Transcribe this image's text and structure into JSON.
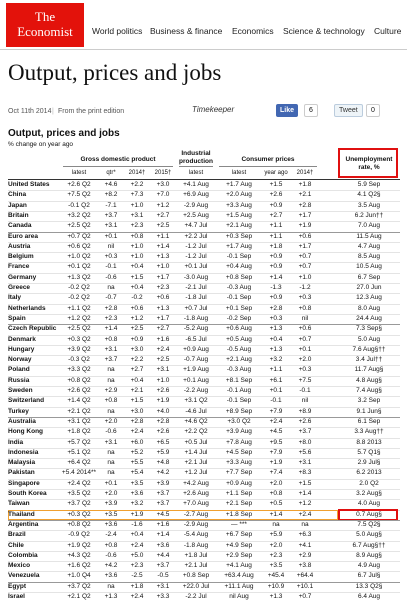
{
  "header": {
    "logo": [
      "The",
      "Economist"
    ],
    "nav": [
      "World politics",
      "Business & finance",
      "Economics",
      "Science & technology",
      "Culture"
    ]
  },
  "page_title": "Output, prices and jobs",
  "meta": {
    "date": "Oct 11th 2014",
    "edition": "From the print edition",
    "timekeeper": "Timekeeper",
    "like": "Like",
    "like_count": "6",
    "tweet": "Tweet",
    "tweet_count": "0"
  },
  "table": {
    "title": "Output, prices and jobs",
    "subtitle": "% change on year ago",
    "group_headers": [
      "Gross domestic product",
      "Industrial production",
      "Consumer prices",
      "Unemployment rate, %"
    ],
    "sub_headers": [
      "latest",
      "qtr*",
      "2014†",
      "2015†",
      "latest",
      "latest",
      "year ago",
      "2014†"
    ],
    "rows": [
      [
        "United States",
        "+2.6 Q2",
        "+4.6",
        "+2.2",
        "+3.0",
        "+4.1 Aug",
        "+1.7 Aug",
        "+1.5",
        "+1.8",
        "5.9 Sep"
      ],
      [
        "China",
        "+7.5 Q2",
        "+8.2",
        "+7.3",
        "+7.0",
        "+6.9 Aug",
        "+2.0 Aug",
        "+2.6",
        "+2.1",
        "4.1 Q2§"
      ],
      [
        "Japan",
        "-0.1 Q2",
        "-7.1",
        "+1.0",
        "+1.2",
        "-2.9 Aug",
        "+3.3 Aug",
        "+0.9",
        "+2.8",
        "3.5 Aug"
      ],
      [
        "Britain",
        "+3.2 Q2",
        "+3.7",
        "+3.1",
        "+2.7",
        "+2.5 Aug",
        "+1.5 Aug",
        "+2.7",
        "+1.7",
        "6.2 Jun††"
      ],
      [
        "Canada",
        "+2.5 Q2",
        "+3.1",
        "+2.3",
        "+2.5",
        "+4.7 Jul",
        "+2.1 Aug",
        "+1.1",
        "+1.9",
        "7.0 Aug"
      ],
      [
        "Euro area",
        "+0.7 Q2",
        "+0.1",
        "+0.8",
        "+1.1",
        "+2.2 Jul",
        "+0.3 Sep",
        "+1.1",
        "+0.6",
        "11.5 Aug"
      ],
      [
        "Austria",
        "+0.6 Q2",
        "nil",
        "+1.0",
        "+1.4",
        "-1.2 Jul",
        "+1.7 Aug",
        "+1.8",
        "+1.7",
        "4.7 Aug"
      ],
      [
        "Belgium",
        "+1.0 Q2",
        "+0.3",
        "+1.0",
        "+1.3",
        "-1.2 Jul",
        "-0.1 Sep",
        "+0.9",
        "+0.7",
        "8.5 Aug"
      ],
      [
        "France",
        "+0.1 Q2",
        "-0.1",
        "+0.4",
        "+1.0",
        "+0.1 Jul",
        "+0.4 Aug",
        "+0.9",
        "+0.7",
        "10.5 Aug"
      ],
      [
        "Germany",
        "+1.3 Q2",
        "-0.6",
        "+1.5",
        "+1.7",
        "-3.0 Aug",
        "+0.8 Sep",
        "+1.4",
        "+1.0",
        "6.7 Sep"
      ],
      [
        "Greece",
        "-0.2 Q2",
        "na",
        "+0.4",
        "+2.3",
        "-2.1 Jul",
        "-0.3 Aug",
        "-1.3",
        "-1.2",
        "27.0 Jun"
      ],
      [
        "Italy",
        "-0.2 Q2",
        "-0.7",
        "-0.2",
        "+0.6",
        "-1.8 Jul",
        "-0.1 Sep",
        "+0.9",
        "+0.3",
        "12.3 Aug"
      ],
      [
        "Netherlands",
        "+1.1 Q2",
        "+2.8",
        "+0.6",
        "+1.3",
        "+0.7 Jul",
        "+0.1 Sep",
        "+2.8",
        "+0.8",
        "8.0 Aug"
      ],
      [
        "Spain",
        "+1.2 Q2",
        "+2.3",
        "+1.2",
        "+1.7",
        "-1.8 Aug",
        "-0.2 Sep",
        "+0.3",
        "nil",
        "24.4 Aug"
      ],
      [
        "Czech Republic",
        "+2.5 Q2",
        "+1.4",
        "+2.5",
        "+2.7",
        "-5.2 Aug",
        "+0.6 Aug",
        "+1.3",
        "+0.6",
        "7.3 Sep§"
      ],
      [
        "Denmark",
        "+0.3 Q2",
        "+0.8",
        "+0.9",
        "+1.6",
        "-6.5 Jul",
        "+0.5 Aug",
        "+0.4",
        "+0.7",
        "5.0 Aug"
      ],
      [
        "Hungary",
        "+3.9 Q2",
        "+3.1",
        "+3.0",
        "+2.4",
        "+0.9 Aug",
        "-0.5 Aug",
        "+1.3",
        "+0.1",
        "7.6 Aug§††"
      ],
      [
        "Norway",
        "-0.3 Q2",
        "+3.7",
        "+2.2",
        "+2.5",
        "-0.7 Aug",
        "+2.1 Aug",
        "+3.2",
        "+2.0",
        "3.4 Jul††"
      ],
      [
        "Poland",
        "+3.3 Q2",
        "na",
        "+2.7",
        "+3.1",
        "+1.9 Aug",
        "-0.3 Aug",
        "+1.1",
        "+0.3",
        "11.7 Aug§"
      ],
      [
        "Russia",
        "+0.8 Q2",
        "na",
        "+0.4",
        "+1.0",
        "+0.1 Aug",
        "+8.1 Sep",
        "+6.1",
        "+7.5",
        "4.8 Aug§"
      ],
      [
        "Sweden",
        "+2.6 Q2",
        "+2.9",
        "+2.1",
        "+2.6",
        "-2.2 Aug",
        "-0.1 Aug",
        "+0.1",
        "-0.1",
        "7.4 Aug§"
      ],
      [
        "Switzerland",
        "+1.4 Q2",
        "+0.8",
        "+1.5",
        "+1.9",
        "+3.1 Q2",
        "-0.1 Sep",
        "-0.1",
        "nil",
        "3.2 Sep"
      ],
      [
        "Turkey",
        "+2.1 Q2",
        "na",
        "+3.0",
        "+4.0",
        "-4.6 Jul",
        "+8.9 Sep",
        "+7.9",
        "+8.9",
        "9.1 Jun§"
      ],
      [
        "Australia",
        "+3.1 Q2",
        "+2.0",
        "+2.8",
        "+2.8",
        "+4.6 Q2",
        "+3.0 Q2",
        "+2.4",
        "+2.6",
        "6.1 Sep"
      ],
      [
        "Hong Kong",
        "+1.8 Q2",
        "-0.6",
        "+2.4",
        "+2.6",
        "+2.2 Q2",
        "+3.9 Aug",
        "+4.5",
        "+3.7",
        "3.3 Aug††"
      ],
      [
        "India",
        "+5.7 Q2",
        "+3.1",
        "+6.0",
        "+6.5",
        "+0.5 Jul",
        "+7.8 Aug",
        "+9.5",
        "+8.0",
        "8.8 2013"
      ],
      [
        "Indonesia",
        "+5.1 Q2",
        "na",
        "+5.2",
        "+5.9",
        "+1.4 Jul",
        "+4.5 Sep",
        "+7.9",
        "+5.6",
        "5.7 Q1§"
      ],
      [
        "Malaysia",
        "+6.4 Q2",
        "na",
        "+5.5",
        "+4.8",
        "+2.1 Jul",
        "+3.3 Aug",
        "+1.9",
        "+3.1",
        "2.9 Jul§"
      ],
      [
        "Pakistan",
        "+5.4 2014**",
        "na",
        "+5.4",
        "+4.2",
        "+1.2 Jul",
        "+7.7 Sep",
        "+7.4",
        "+8.3",
        "6.2 2013"
      ],
      [
        "Singapore",
        "+2.4 Q2",
        "+0.1",
        "+3.5",
        "+3.9",
        "+4.2 Aug",
        "+0.9 Aug",
        "+2.0",
        "+1.5",
        "2.0 Q2"
      ],
      [
        "South Korea",
        "+3.5 Q2",
        "+2.0",
        "+3.6",
        "+3.7",
        "+2.6 Aug",
        "+1.1 Sep",
        "+0.8",
        "+1.4",
        "3.2 Aug§"
      ],
      [
        "Taiwan",
        "+3.7 Q2",
        "+3.9",
        "+3.2",
        "+3.7",
        "+7.0 Aug",
        "+2.1 Sep",
        "+0.5",
        "+1.2",
        "4.0 Aug"
      ],
      [
        "Thailand",
        "+0.3 Q2",
        "+3.5",
        "+1.9",
        "+4.5",
        "-2.7 Aug",
        "+1.8 Sep",
        "+1.4",
        "+2.4",
        "0.7 Aug§"
      ],
      [
        "Argentina",
        "+0.8 Q2",
        "+3.6",
        "-1.6",
        "+1.6",
        "-2.9 Aug",
        "— ***",
        "na",
        "na",
        "7.5 Q2§"
      ],
      [
        "Brazil",
        "-0.9 Q2",
        "-2.4",
        "+0.4",
        "+1.4",
        "-5.4 Aug",
        "+6.7 Sep",
        "+5.9",
        "+6.3",
        "5.0 Aug§"
      ],
      [
        "Chile",
        "+1.9 Q2",
        "+0.8",
        "+2.4",
        "+3.6",
        "-1.8 Aug",
        "+4.9 Sep",
        "+2.0",
        "+4.1",
        "6.7 Aug§††"
      ],
      [
        "Colombia",
        "+4.3 Q2",
        "-0.6",
        "+5.0",
        "+4.4",
        "+1.8 Jul",
        "+2.9 Sep",
        "+2.3",
        "+2.9",
        "8.9 Aug§"
      ],
      [
        "Mexico",
        "+1.6 Q2",
        "+4.2",
        "+2.3",
        "+3.7",
        "+2.1 Jul",
        "+4.1 Aug",
        "+3.5",
        "+3.8",
        "4.9 Aug"
      ],
      [
        "Venezuela",
        "+1.0 Q4",
        "+3.6",
        "-2.5",
        "-0.5",
        "+0.8 Sep",
        "+63.4 Aug",
        "+45.4",
        "+64.4",
        "6.7 Jul§"
      ],
      [
        "Egypt",
        "+3.7 Q2",
        "na",
        "+1.8",
        "+3.1",
        "+22.0 Jul",
        "+11.1 Aug",
        "+10.9",
        "+10.1",
        "13.3 Q2§"
      ],
      [
        "Israel",
        "+2.1 Q2",
        "+1.3",
        "+2.4",
        "+3.3",
        "-2.2 Jul",
        "nil Aug",
        "+1.3",
        "+0.7",
        "6.4 Aug"
      ]
    ]
  }
}
